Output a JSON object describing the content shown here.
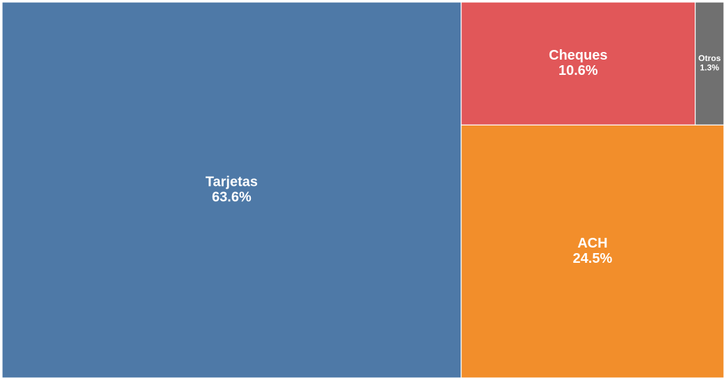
{
  "chart_data": {
    "type": "treemap",
    "categories": [
      "Tarjetas",
      "ACH",
      "Cheques",
      "Otros"
    ],
    "values": [
      63.6,
      24.5,
      10.6,
      1.3
    ],
    "value_labels": [
      "63.6%",
      "24.5%",
      "10.6%",
      "1.3%"
    ],
    "colors": [
      "#4e79a7",
      "#f28e2b",
      "#e15759",
      "#707070"
    ]
  }
}
